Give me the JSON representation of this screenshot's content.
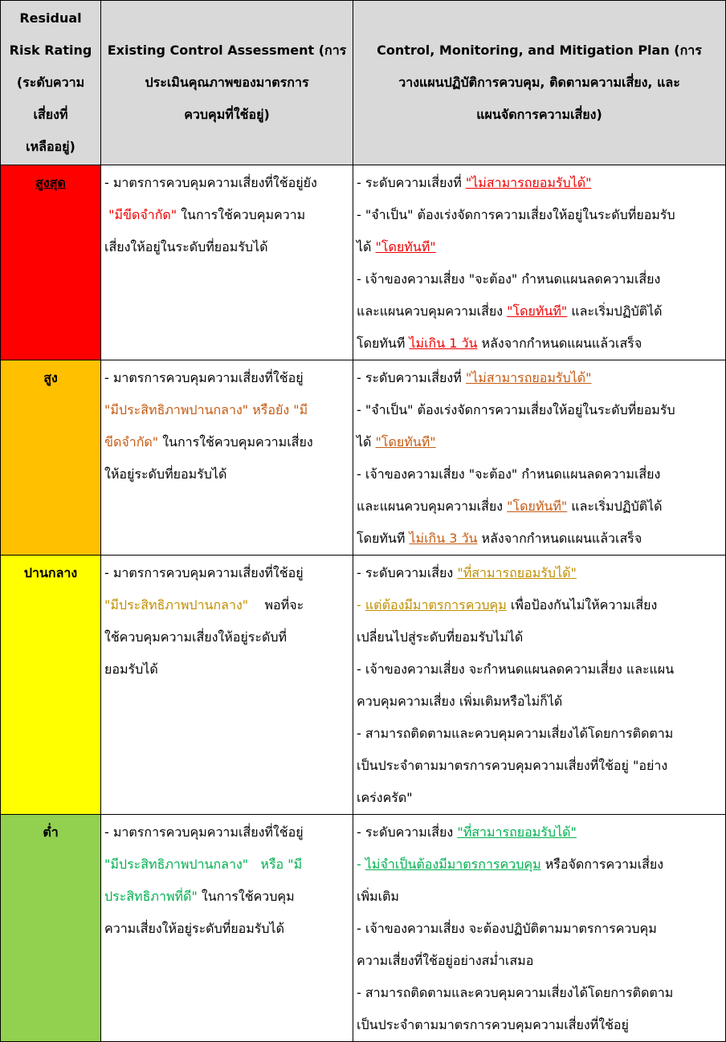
{
  "header": {
    "col1": [
      "Residual",
      "Risk Rating",
      "(ระดับความ",
      "เสี่ยงที่",
      "เหลืออยู่)"
    ],
    "col2": [
      "Existing Control Assessment (การ",
      "ประเมินคุณภาพของมาตรการ",
      "ควบคุมที่ใช้อยู่)"
    ],
    "col3": [
      "Control, Monitoring, and Mitigation Plan (การ",
      "วางแผนปฏิบัติการควบคุม, ติดตามความเสี่ยง, และ",
      "แผนจัดการความเสี่ยง)"
    ]
  },
  "colors": {
    "highest": "#ff0000",
    "high": "#ffc000",
    "medium": "#ffff00",
    "low": "#92d050",
    "header_bg": "#d9d9d9"
  },
  "rows": [
    {
      "rating": "สูงสุด",
      "assess": {
        "a": "- มาตรการควบคุมความเสี่ยงที่ใช้อยู่ยัง",
        "b": "\"มีขีดจำกัด\"",
        "c": " ในการใช้ควบคุมความ",
        "d": "เสี่ยงให้อยู่ในระดับที่ยอมรับได้"
      },
      "plan": {
        "p1a": "- ระดับความเสี่ยงที่ ",
        "p1b": "\"ไม่สามารถยอมรับได้\"",
        "p2a": "- \"จำเป็น\" ต้องเร่งจัดการความเสี่ยงให้อยู่ในระดับที่ยอมรับ",
        "p2b": "ได้ ",
        "p2c": "\"โดยทันที\"",
        "p3a": "- เจ้าของความเสี่ยง \"จะต้อง\" กำหนดแผนลดความเสี่ยง",
        "p3b": "และแผนควบคุมความเสี่ยง ",
        "p3c": "\"โดยทันที\"",
        "p3d": " และเริ่มปฏิบัติได้",
        "p3e": "โดยทันที ",
        "p3f": "ไม่เกิน 1 วัน",
        "p3g": " หลังจากกำหนดแผนแล้วเสร็จ"
      }
    },
    {
      "rating": "สูง",
      "assess": {
        "a": "- มาตรการควบคุมความเสี่ยงที่ใช้อยู่",
        "b": "\"มีประสิทธิภาพปานกลาง\"  หรือยัง \"มี",
        "c": "ขีดจำกัด\"",
        "d": " ในการใช้ควบคุมความเสี่ยง",
        "e": "ให้อยู่ระดับที่ยอมรับได้"
      },
      "plan": {
        "p1a": "- ระดับความเสี่ยงที่ ",
        "p1b": "\"ไม่สามารถยอมรับได้\"",
        "p2a": "- \"จำเป็น\" ต้องเร่งจัดการความเสี่ยงให้อยู่ในระดับที่ยอมรับ",
        "p2b": "ได้ ",
        "p2c": "\"โดยทันที\"",
        "p3a": "- เจ้าของความเสี่ยง \"จะต้อง\" กำหนดแผนลดความเสี่ยง",
        "p3b": "และแผนควบคุมความเสี่ยง ",
        "p3c": "\"โดยทันที\"",
        "p3d": " และเริ่มปฏิบัติได้",
        "p3e": "โดยทันที ",
        "p3f": "ไม่เกิน 3 วัน",
        "p3g": " หลังจากกำหนดแผนแล้วเสร็จ"
      }
    },
    {
      "rating": "ปานกลาง",
      "assess": {
        "a": "- มาตรการควบคุมความเสี่ยงที่ใช้อยู่",
        "b": "\"มีประสิทธิภาพปานกลาง\"",
        "c": "    พอที่จะ",
        "d": "ใช้ควบคุมความเสี่ยงให้อยู่ระดับที่",
        "e": "ยอมรับได้"
      },
      "plan": {
        "p1a": "- ระดับความเสี่ยง ",
        "p1b": "\"ที่สามารถยอมรับได้\"",
        "p2a": "- ",
        "p2b": "แต่ต้องมีมาตรการควบคุม",
        "p2c": " เพื่อป้องกันไม่ให้ความเสี่ยง",
        "p2d": "เปลี่ยนไปสู่ระดับที่ยอมรับไม่ได้",
        "p3a": "- เจ้าของความเสี่ยง จะกำหนดแผนลดความเสี่ยง และแผน",
        "p3b": "ควบคุมความเสี่ยง เพิ่มเติมหรือไม่ก็ได้",
        "p4a": "- สามารถติดตามและควบคุมความเสี่ยงได้โดยการติดตาม",
        "p4b": "เป็นประจำตามมาตรการควบคุมความเสี่ยงที่ใช้อยู่ \"อย่าง",
        "p4c": "เคร่งครัด\""
      }
    },
    {
      "rating": "ต่ำ",
      "assess": {
        "a": "- มาตรการควบคุมความเสี่ยงที่ใช้อยู่",
        "b": "\"มีประสิทธิภาพปานกลาง\"   หรือ \"มี",
        "c": "ประสิทธิภาพที่ดี\"",
        "d": " ในการใช้ควบคุม",
        "e": "ความเสี่ยงให้อยู่ระดับที่ยอมรับได้"
      },
      "plan": {
        "p1a": "- ระดับความเสี่ยง ",
        "p1b": "\"ที่สามารถยอมรับได้\"",
        "p2a": "- ",
        "p2b": "ไม่จำเป็นต้องมีมาตรการควบคุม",
        "p2c": " หรือจัดการความเสี่ยง",
        "p2d": "เพิ่มเติม",
        "p3a": "- เจ้าของความเสี่ยง จะต้องปฏิบัติตามมาตรการควบคุม",
        "p3b": "ความเสี่ยงที่ใช้อยู่อย่างสม่ำเสมอ",
        "p4a": "- สามารถติดตามและควบคุมความเสี่ยงได้โดยการติดตาม",
        "p4b": "เป็นประจำตามมาตรการควบคุมความเสี่ยงที่ใช้อยู่"
      }
    }
  ]
}
